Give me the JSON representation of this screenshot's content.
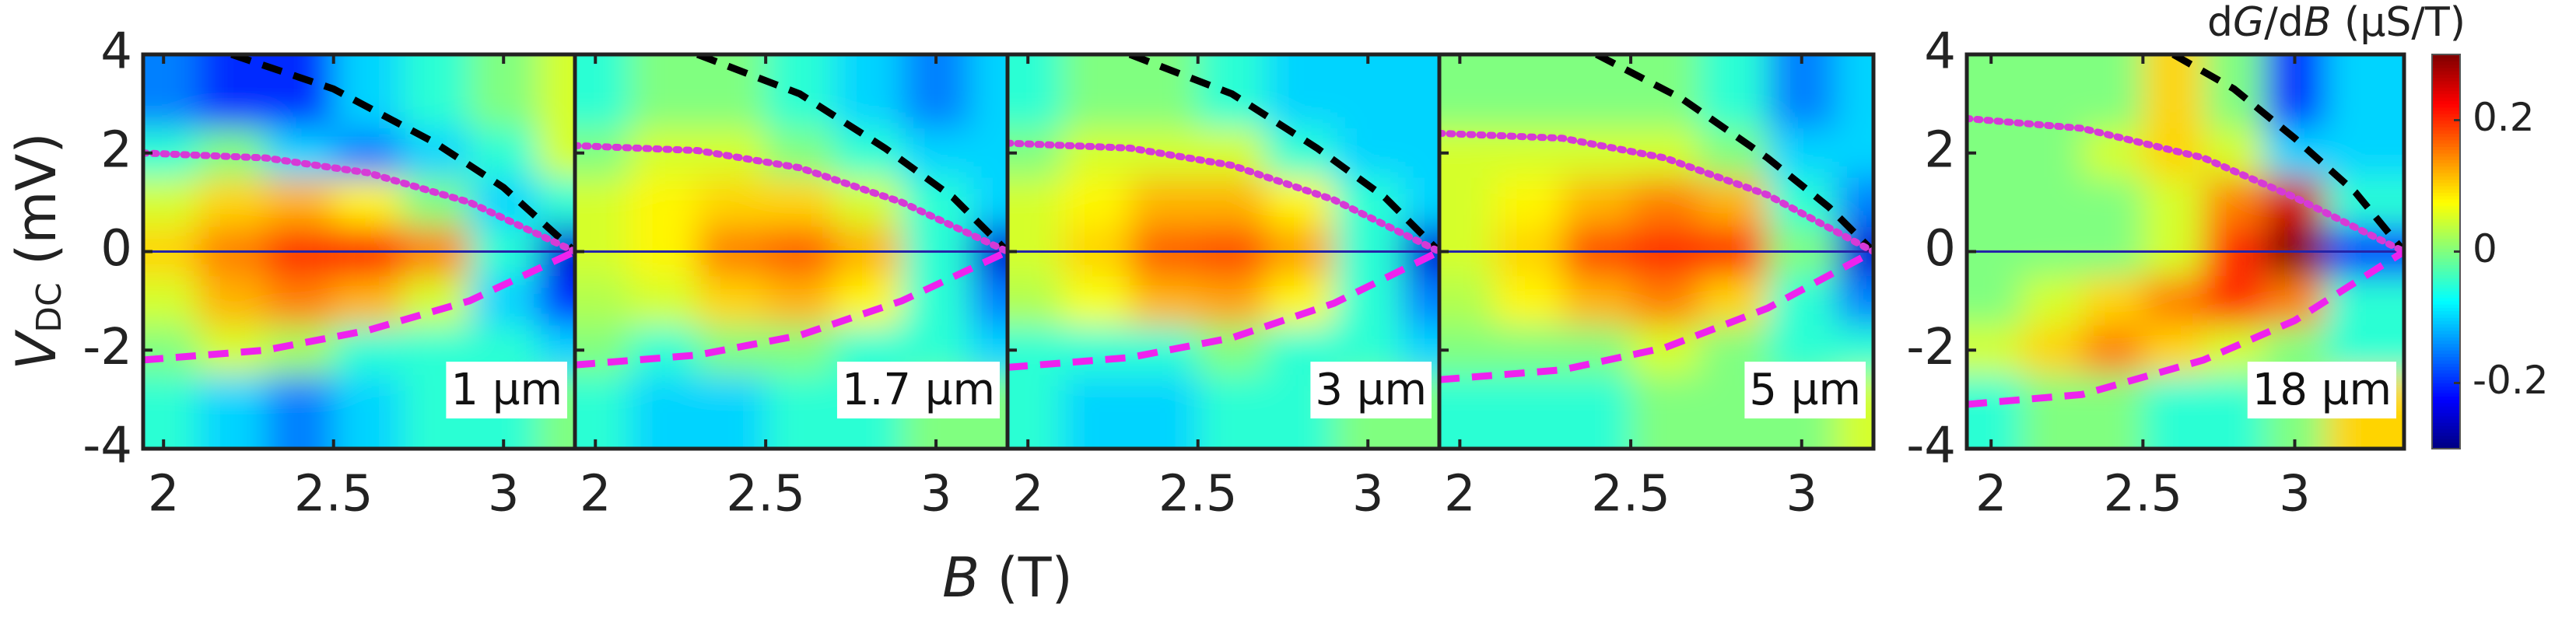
{
  "chart_data": {
    "type": "heatmap",
    "xlabel": {
      "symbol": "B",
      "unit": " (T)"
    },
    "ylabel": {
      "symbol": "V",
      "subscript": "DC",
      "unit": " (mV)"
    },
    "colorbar": {
      "label": [
        "d",
        "G",
        "/d",
        "B",
        " (µS/T)"
      ],
      "clim": [
        -0.3,
        0.3
      ],
      "ticks": [
        -0.2,
        0,
        0.2
      ],
      "colormap": "jet"
    },
    "panels": [
      {
        "label": "1 µm",
        "xlim": [
          1.94,
          3.21
        ],
        "ylim": [
          -4,
          4
        ],
        "xticks": [
          2,
          2.5,
          3
        ],
        "yticks": [
          -4,
          -2,
          0,
          2,
          4
        ],
        "show_ytick_labels": true,
        "zero_line": 0,
        "x": [
          2.0,
          2.2,
          2.4,
          2.6,
          2.8,
          3.0,
          3.2
        ],
        "y": [
          3,
          2,
          1,
          0,
          -1,
          -2,
          -3
        ],
        "z": [
          [
            -0.15,
            -0.2,
            -0.2,
            -0.1,
            -0.05,
            0.0,
            0.05
          ],
          [
            -0.05,
            0.0,
            -0.1,
            -0.15,
            -0.1,
            -0.05,
            0.05
          ],
          [
            0.05,
            0.1,
            0.12,
            0.08,
            0.0,
            -0.1,
            -0.05
          ],
          [
            0.1,
            0.15,
            0.2,
            0.22,
            0.15,
            -0.05,
            -0.25
          ],
          [
            0.05,
            0.12,
            0.15,
            0.12,
            0.05,
            -0.1,
            -0.2
          ],
          [
            0.0,
            0.05,
            0.02,
            -0.05,
            -0.05,
            -0.05,
            -0.1
          ],
          [
            -0.05,
            -0.1,
            -0.15,
            -0.1,
            -0.05,
            -0.05,
            0.0
          ]
        ],
        "series": [
          {
            "style": "dashed",
            "color": "#000000",
            "x": [
              2.2,
              2.5,
              2.8,
              3.0,
              3.21
            ],
            "values": [
              4.0,
              3.3,
              2.2,
              1.3,
              0
            ]
          },
          {
            "style": "dotted",
            "color": "#d63ad6",
            "x": [
              1.94,
              2.3,
              2.6,
              2.9,
              3.21
            ],
            "values": [
              2.0,
              1.9,
              1.6,
              1.0,
              0
            ]
          },
          {
            "style": "dashed",
            "color": "#ee22ee",
            "x": [
              1.94,
              2.3,
              2.6,
              2.9,
              3.21
            ],
            "values": [
              -2.2,
              -2.0,
              -1.6,
              -1.0,
              0
            ]
          }
        ]
      },
      {
        "label": "1.7 µm",
        "xlim": [
          1.94,
          3.21
        ],
        "ylim": [
          -4,
          4
        ],
        "xticks": [
          2,
          2.5,
          3
        ],
        "yticks": [
          -4,
          -2,
          0,
          2,
          4
        ],
        "show_ytick_labels": false,
        "zero_line": 0,
        "x": [
          2.0,
          2.2,
          2.4,
          2.6,
          2.8,
          3.0,
          3.2
        ],
        "y": [
          3,
          2,
          1,
          0,
          -1,
          -2,
          -3
        ],
        "z": [
          [
            -0.05,
            0.0,
            0.0,
            -0.05,
            -0.1,
            -0.15,
            -0.1
          ],
          [
            0.0,
            0.05,
            0.05,
            0.0,
            -0.05,
            -0.1,
            -0.1
          ],
          [
            0.05,
            0.08,
            0.1,
            0.1,
            0.05,
            -0.05,
            -0.1
          ],
          [
            0.05,
            0.08,
            0.15,
            0.17,
            0.12,
            -0.05,
            -0.25
          ],
          [
            0.03,
            0.05,
            0.1,
            0.12,
            0.08,
            -0.05,
            -0.15
          ],
          [
            0.0,
            -0.05,
            0.0,
            0.0,
            -0.05,
            -0.05,
            -0.1
          ],
          [
            -0.05,
            -0.1,
            -0.1,
            -0.05,
            -0.05,
            0.0,
            0.0
          ]
        ],
        "series": [
          {
            "style": "dashed",
            "color": "#000000",
            "x": [
              2.3,
              2.6,
              2.85,
              3.05,
              3.21
            ],
            "values": [
              4.0,
              3.2,
              2.1,
              1.1,
              0
            ]
          },
          {
            "style": "dotted",
            "color": "#d63ad6",
            "x": [
              1.94,
              2.3,
              2.6,
              2.9,
              3.21
            ],
            "values": [
              2.15,
              2.05,
              1.7,
              1.0,
              0
            ]
          },
          {
            "style": "dashed",
            "color": "#ee22ee",
            "x": [
              1.94,
              2.3,
              2.6,
              2.9,
              3.21
            ],
            "values": [
              -2.3,
              -2.1,
              -1.7,
              -1.0,
              0
            ]
          }
        ]
      },
      {
        "label": "3 µm",
        "xlim": [
          1.94,
          3.21
        ],
        "ylim": [
          -4,
          4
        ],
        "xticks": [
          2,
          2.5,
          3
        ],
        "yticks": [
          -4,
          -2,
          0,
          2,
          4
        ],
        "show_ytick_labels": false,
        "zero_line": 0,
        "x": [
          2.0,
          2.2,
          2.4,
          2.6,
          2.8,
          3.0,
          3.2
        ],
        "y": [
          3,
          2,
          1,
          0,
          -1,
          -2,
          -3
        ],
        "z": [
          [
            -0.05,
            0.0,
            0.0,
            -0.05,
            -0.1,
            -0.1,
            -0.1
          ],
          [
            0.0,
            0.05,
            0.05,
            0.05,
            -0.05,
            -0.1,
            -0.1
          ],
          [
            0.05,
            0.08,
            0.12,
            0.12,
            0.08,
            -0.05,
            -0.1
          ],
          [
            0.05,
            0.1,
            0.17,
            0.18,
            0.13,
            -0.05,
            -0.25
          ],
          [
            0.03,
            0.07,
            0.12,
            0.13,
            0.08,
            -0.05,
            -0.15
          ],
          [
            -0.05,
            -0.05,
            -0.05,
            0.0,
            -0.05,
            -0.05,
            -0.1
          ],
          [
            -0.05,
            -0.1,
            -0.1,
            -0.05,
            -0.05,
            0.0,
            0.0
          ]
        ],
        "series": [
          {
            "style": "dashed",
            "color": "#000000",
            "x": [
              2.3,
              2.6,
              2.85,
              3.05,
              3.21
            ],
            "values": [
              4.0,
              3.2,
              2.1,
              1.1,
              0
            ]
          },
          {
            "style": "dotted",
            "color": "#d63ad6",
            "x": [
              1.94,
              2.3,
              2.6,
              2.9,
              3.21
            ],
            "values": [
              2.2,
              2.1,
              1.75,
              1.05,
              0
            ]
          },
          {
            "style": "dashed",
            "color": "#ee22ee",
            "x": [
              1.94,
              2.3,
              2.6,
              2.9,
              3.21
            ],
            "values": [
              -2.35,
              -2.15,
              -1.75,
              -1.05,
              0
            ]
          }
        ]
      },
      {
        "label": "5 µm",
        "xlim": [
          1.94,
          3.21
        ],
        "ylim": [
          -4,
          4
        ],
        "xticks": [
          2,
          2.5,
          3
        ],
        "yticks": [
          -4,
          -2,
          0,
          2,
          4
        ],
        "show_ytick_labels": false,
        "zero_line": 0,
        "x": [
          2.0,
          2.2,
          2.4,
          2.6,
          2.8,
          3.0,
          3.2
        ],
        "y": [
          3,
          2,
          1,
          0,
          -1,
          -2,
          -3
        ],
        "z": [
          [
            0.0,
            0.0,
            0.0,
            0.0,
            -0.05,
            -0.15,
            -0.1
          ],
          [
            0.05,
            0.05,
            0.05,
            0.05,
            0.0,
            -0.1,
            -0.1
          ],
          [
            0.05,
            0.08,
            0.12,
            0.15,
            0.12,
            -0.05,
            -0.15
          ],
          [
            0.05,
            0.1,
            0.18,
            0.2,
            0.2,
            0.0,
            -0.25
          ],
          [
            0.03,
            0.08,
            0.12,
            0.15,
            0.1,
            -0.05,
            -0.15
          ],
          [
            0.0,
            0.0,
            0.0,
            0.05,
            0.0,
            -0.05,
            -0.05
          ],
          [
            -0.05,
            -0.05,
            -0.05,
            0.0,
            0.0,
            0.0,
            0.05
          ]
        ],
        "series": [
          {
            "style": "dashed",
            "color": "#000000",
            "x": [
              2.4,
              2.65,
              2.9,
              3.08,
              3.21
            ],
            "values": [
              4.0,
              3.1,
              1.9,
              0.9,
              0
            ]
          },
          {
            "style": "dotted",
            "color": "#d63ad6",
            "x": [
              1.94,
              2.3,
              2.6,
              2.9,
              3.21
            ],
            "values": [
              2.4,
              2.3,
              1.9,
              1.15,
              0
            ]
          },
          {
            "style": "dashed",
            "color": "#ee22ee",
            "x": [
              1.94,
              2.3,
              2.6,
              2.9,
              3.21
            ],
            "values": [
              -2.6,
              -2.4,
              -1.95,
              -1.15,
              0
            ]
          }
        ]
      },
      {
        "label": "18 µm",
        "xlim": [
          1.92,
          3.36
        ],
        "ylim": [
          -4,
          4
        ],
        "xticks": [
          2,
          2.5,
          3
        ],
        "yticks": [
          -4,
          -2,
          0,
          2,
          4
        ],
        "show_ytick_labels": true,
        "zero_line": 0,
        "x": [
          2.0,
          2.2,
          2.4,
          2.6,
          2.8,
          3.0,
          3.2
        ],
        "y": [
          3,
          2,
          1,
          0,
          -1,
          -2,
          -3
        ],
        "z": [
          [
            0.0,
            0.0,
            0.0,
            0.1,
            0.0,
            -0.2,
            -0.1
          ],
          [
            0.0,
            0.0,
            0.05,
            0.1,
            0.05,
            -0.1,
            -0.1
          ],
          [
            0.0,
            0.0,
            0.0,
            0.05,
            0.15,
            0.25,
            -0.05
          ],
          [
            0.0,
            0.0,
            0.0,
            0.05,
            0.2,
            0.3,
            -0.2
          ],
          [
            0.0,
            0.05,
            0.1,
            0.15,
            0.2,
            0.15,
            -0.05
          ],
          [
            0.05,
            0.1,
            0.15,
            0.1,
            0.05,
            0.0,
            -0.05
          ],
          [
            -0.05,
            0.0,
            0.0,
            -0.05,
            -0.05,
            0.0,
            0.1
          ]
        ],
        "series": [
          {
            "style": "dashed",
            "color": "#000000",
            "x": [
              2.6,
              2.8,
              3.0,
              3.2,
              3.36
            ],
            "values": [
              4.0,
              3.3,
              2.3,
              1.2,
              0
            ]
          },
          {
            "style": "dotted",
            "color": "#d63ad6",
            "x": [
              1.92,
              2.3,
              2.7,
              3.0,
              3.36
            ],
            "values": [
              2.7,
              2.5,
              1.9,
              1.1,
              0
            ]
          },
          {
            "style": "dashed",
            "color": "#ee22ee",
            "x": [
              1.92,
              2.3,
              2.7,
              3.0,
              3.36
            ],
            "values": [
              -3.1,
              -2.9,
              -2.2,
              -1.4,
              0
            ]
          }
        ]
      }
    ]
  }
}
